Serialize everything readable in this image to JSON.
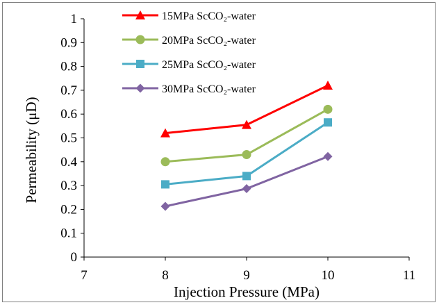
{
  "chart_data": {
    "type": "line",
    "xlabel": "Injection Pressure (MPa)",
    "ylabel": "Permeability (μD)",
    "xlim": [
      7,
      11
    ],
    "ylim": [
      0,
      1
    ],
    "x_ticks": [
      "7",
      "8",
      "9",
      "10",
      "11"
    ],
    "y_ticks": [
      "0",
      "0.1",
      "0.2",
      "0.3",
      "0.4",
      "0.5",
      "0.6",
      "0.7",
      "0.8",
      "0.9",
      "1"
    ],
    "grid": false,
    "legend_position": "top-left",
    "x": [
      8,
      9,
      10
    ],
    "series": [
      {
        "name": "15MPa ScCO₂-water",
        "color": "#ff0000",
        "marker": "triangle",
        "values": [
          0.52,
          0.555,
          0.72
        ]
      },
      {
        "name": "20MPa ScCO₂-water",
        "color": "#9bbb59",
        "marker": "circle",
        "values": [
          0.4,
          0.43,
          0.62
        ]
      },
      {
        "name": "25MPa ScCO₂-water",
        "color": "#4bacc6",
        "marker": "square",
        "values": [
          0.305,
          0.34,
          0.565
        ]
      },
      {
        "name": "30MPa ScCO₂-water",
        "color": "#8064a2",
        "marker": "diamond",
        "values": [
          0.213,
          0.287,
          0.422
        ]
      }
    ]
  }
}
